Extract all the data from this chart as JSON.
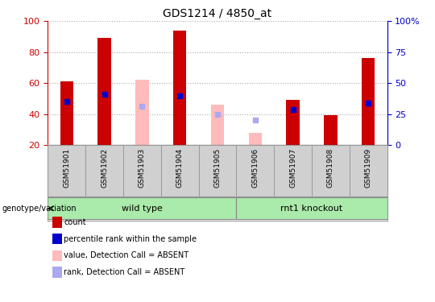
{
  "title": "GDS1214 / 4850_at",
  "samples": [
    "GSM51901",
    "GSM51902",
    "GSM51903",
    "GSM51904",
    "GSM51905",
    "GSM51906",
    "GSM51907",
    "GSM51908",
    "GSM51909"
  ],
  "ylim_left": [
    20,
    100
  ],
  "ylim_right": [
    0,
    100
  ],
  "yticks_left": [
    20,
    40,
    60,
    80,
    100
  ],
  "ytick_labels_right": [
    "0",
    "25",
    "50",
    "75",
    "100%"
  ],
  "yticks_right": [
    0,
    25,
    50,
    75,
    100
  ],
  "red_bars": [
    61,
    89,
    null,
    94,
    null,
    null,
    49,
    39,
    76
  ],
  "blue_marks": [
    48,
    53,
    null,
    52,
    null,
    null,
    43,
    null,
    47
  ],
  "pink_bars": [
    null,
    null,
    62,
    null,
    46,
    28,
    null,
    null,
    null
  ],
  "light_blue_marks": [
    null,
    null,
    45,
    null,
    40,
    36,
    null,
    null,
    null
  ],
  "bar_width": 0.35,
  "colors": {
    "red": "#cc0000",
    "blue": "#0000cc",
    "pink": "#ffbbbb",
    "light_blue": "#aaaaee",
    "group_bg": "#aaeaaa",
    "axis_left": "#cc0000",
    "axis_right": "#0000cc",
    "sample_bg": "#d0d0d0",
    "plot_bg": "#ffffff",
    "grid": "#aaaaaa"
  },
  "group_labels": [
    "wild type",
    "rnt1 knockout"
  ],
  "group_ranges": [
    [
      0,
      4
    ],
    [
      5,
      8
    ]
  ],
  "legend_items": [
    {
      "label": "count",
      "color": "#cc0000"
    },
    {
      "label": "percentile rank within the sample",
      "color": "#0000cc"
    },
    {
      "label": "value, Detection Call = ABSENT",
      "color": "#ffbbbb"
    },
    {
      "label": "rank, Detection Call = ABSENT",
      "color": "#aaaaee"
    }
  ]
}
